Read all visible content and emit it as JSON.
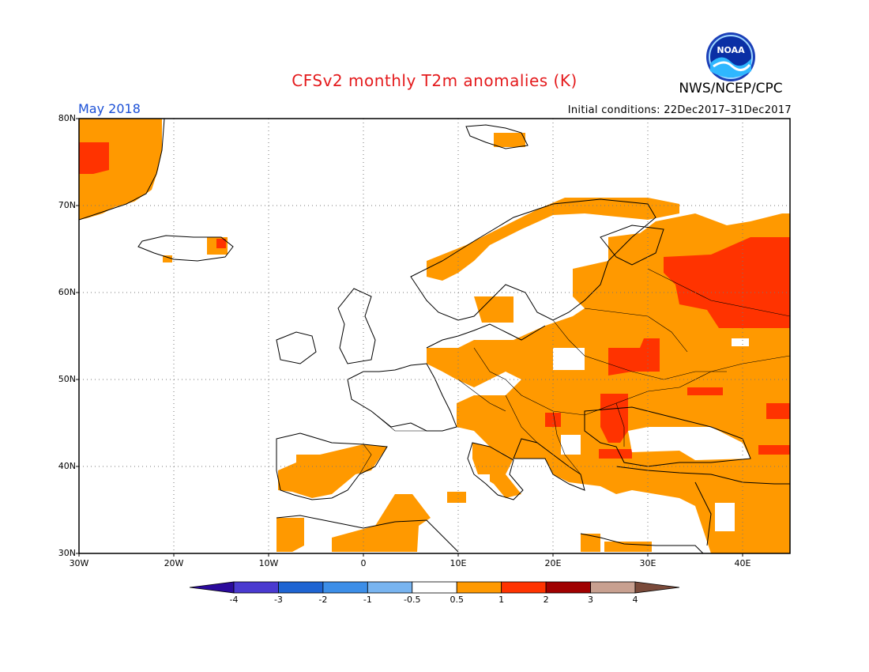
{
  "title": "CFSv2 monthly T2m anomalies (K)",
  "agency": "NWS/NCEP/CPC",
  "logo_text": "NOAA",
  "forecast_month": "May 2018",
  "initial_conditions": "Initial conditions: 22Dec2017–31Dec2017",
  "map": {
    "lon_range": [
      -30,
      45
    ],
    "lat_range": [
      30,
      80
    ],
    "lat_labels": [
      "80N",
      "70N",
      "60N",
      "50N",
      "40N",
      "30N"
    ],
    "lon_labels": [
      "30W",
      "20W",
      "10W",
      "0",
      "10E",
      "20E",
      "30E",
      "40E"
    ],
    "colors": {
      "land_outline": "#000000",
      "grid": "#777777",
      "anom_0_5_1": "#ff9900",
      "anom_1_2": "#ff3300"
    }
  },
  "colorbar": {
    "labels": [
      "-4",
      "-3",
      "-2",
      "-1",
      "-0.5",
      "0.5",
      "1",
      "2",
      "3",
      "4"
    ],
    "colors": [
      "#2b0a9c",
      "#4a3ad0",
      "#1e64d2",
      "#3c8ee8",
      "#78b4f0",
      "#ffffff",
      "#ff9900",
      "#ff3300",
      "#a00000",
      "#c8a090",
      "#7a4a3a"
    ]
  }
}
